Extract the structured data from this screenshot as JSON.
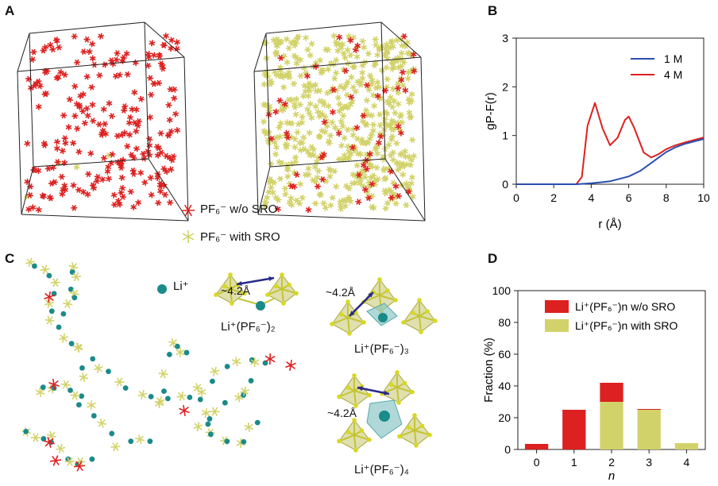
{
  "figure": {
    "panel_labels": {
      "a": "A",
      "b": "B",
      "c": "C",
      "d": "D"
    },
    "panel_a": {
      "legend": [
        {
          "label": "PF₆⁻ w/o SRO",
          "color": "#dd2020"
        },
        {
          "label": "PF₆⁻ with SRO",
          "color": "#d2d26a"
        }
      ]
    },
    "panel_c": {
      "li_label": "Li⁺",
      "li_color": "#1a8a8a",
      "cluster_labels": [
        {
          "name": "Li⁺(PF₆⁻)₂",
          "distance": "~4.2Å"
        },
        {
          "name": "Li⁺(PF₆⁻)₃",
          "distance": "~4.2Å"
        },
        {
          "name": "Li⁺(PF₆⁻)₄",
          "distance": "~4.2Å"
        }
      ]
    }
  },
  "chart_data": [
    {
      "type": "line",
      "panel": "B",
      "xlabel": "r (Å)",
      "ylabel": "gP-F(r)",
      "xlim": [
        0,
        10
      ],
      "ylim": [
        0,
        3
      ],
      "xticks": [
        "0",
        "2",
        "4",
        "6",
        "8",
        "10"
      ],
      "yticks": [
        "0",
        "1",
        "2",
        "3"
      ],
      "legend_position": "top-right",
      "series": [
        {
          "name": "1 M",
          "color": "#2a4fb0",
          "x": [
            0,
            3.2,
            4.0,
            5.0,
            6.0,
            6.6,
            7.0,
            7.5,
            8.0,
            8.5,
            9.0,
            9.5,
            10.0
          ],
          "y": [
            0,
            0,
            0.02,
            0.06,
            0.16,
            0.27,
            0.38,
            0.52,
            0.66,
            0.76,
            0.83,
            0.88,
            0.93
          ]
        },
        {
          "name": "4 M",
          "color": "#dd2020",
          "x": [
            0,
            3.2,
            3.5,
            3.8,
            4.2,
            4.6,
            5.0,
            5.4,
            5.8,
            6.0,
            6.3,
            6.8,
            7.2,
            7.6,
            8.0,
            8.5,
            9.0,
            9.5,
            10.0
          ],
          "y": [
            0,
            0,
            0.15,
            1.2,
            1.67,
            1.15,
            0.8,
            0.95,
            1.32,
            1.39,
            1.15,
            0.65,
            0.55,
            0.62,
            0.72,
            0.8,
            0.86,
            0.91,
            0.96
          ]
        }
      ]
    },
    {
      "type": "bar",
      "panel": "D",
      "xlabel": "n",
      "ylabel": "Fraction (%)",
      "ylim": [
        0,
        100
      ],
      "yticks": [
        "0",
        "20",
        "40",
        "60",
        "80",
        "100"
      ],
      "categories": [
        "0",
        "1",
        "2",
        "3",
        "4"
      ],
      "stacked": true,
      "legend_position": "top-right",
      "series": [
        {
          "name": "Li⁺(PF₆⁻)n with SRO",
          "color": "#d2d26a",
          "values": [
            0,
            0,
            30,
            25,
            4
          ]
        },
        {
          "name": "Li⁺(PF₆⁻)n w/o SRO",
          "color": "#dd2020",
          "values": [
            3.5,
            25,
            12,
            0.5,
            0
          ]
        }
      ]
    }
  ]
}
